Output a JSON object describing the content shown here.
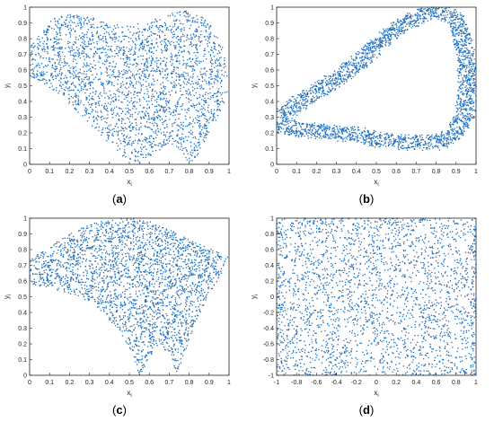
{
  "colors": {
    "points": "#1f6fbf",
    "frame": "#222222"
  },
  "captions": {
    "a": "a",
    "b": "b",
    "c": "c",
    "d": "d"
  },
  "chart_data": [
    {
      "panel": "a",
      "type": "scatter",
      "xlabel": "x",
      "xlabel_sub": "i",
      "ylabel": "y",
      "ylabel_sub": "i",
      "xlim": [
        0,
        1
      ],
      "ylim": [
        0,
        1
      ],
      "xticks": [
        0,
        0.1,
        0.2,
        0.3,
        0.4,
        0.5,
        0.6,
        0.7,
        0.8,
        0.9,
        1
      ],
      "yticks": [
        0,
        0.1,
        0.2,
        0.3,
        0.4,
        0.5,
        0.6,
        0.7,
        0.8,
        0.9,
        1
      ],
      "grid": false,
      "legend": "none",
      "point_count_estimate": 10000,
      "region_outline": [
        [
          0.0,
          0.74
        ],
        [
          0.05,
          0.84
        ],
        [
          0.12,
          0.93
        ],
        [
          0.2,
          0.96
        ],
        [
          0.3,
          0.94
        ],
        [
          0.4,
          0.9
        ],
        [
          0.5,
          0.88
        ],
        [
          0.6,
          0.91
        ],
        [
          0.7,
          0.96
        ],
        [
          0.78,
          0.98
        ],
        [
          0.85,
          0.95
        ],
        [
          0.92,
          0.88
        ],
        [
          0.97,
          0.74
        ],
        [
          1.0,
          0.5
        ],
        [
          0.97,
          0.36
        ],
        [
          0.9,
          0.2
        ],
        [
          0.84,
          0.05
        ],
        [
          0.8,
          0.0
        ],
        [
          0.75,
          0.1
        ],
        [
          0.7,
          0.14
        ],
        [
          0.62,
          0.06
        ],
        [
          0.55,
          0.0
        ],
        [
          0.48,
          0.04
        ],
        [
          0.42,
          0.1
        ],
        [
          0.35,
          0.2
        ],
        [
          0.25,
          0.32
        ],
        [
          0.15,
          0.44
        ],
        [
          0.06,
          0.52
        ],
        [
          0.0,
          0.56
        ]
      ]
    },
    {
      "panel": "b",
      "type": "scatter",
      "xlabel": "x",
      "xlabel_sub": "i",
      "ylabel": "y",
      "ylabel_sub": "i",
      "xlim": [
        0,
        1
      ],
      "ylim": [
        0,
        1
      ],
      "xticks": [
        0,
        0.1,
        0.2,
        0.3,
        0.4,
        0.5,
        0.6,
        0.7,
        0.8,
        0.9,
        1
      ],
      "yticks": [
        0,
        0.1,
        0.2,
        0.3,
        0.4,
        0.5,
        0.6,
        0.7,
        0.8,
        0.9,
        1
      ],
      "grid": false,
      "legend": "none",
      "point_count_estimate": 6000,
      "loop_outline": [
        [
          0.0,
          0.25
        ],
        [
          0.05,
          0.33
        ],
        [
          0.12,
          0.4
        ],
        [
          0.22,
          0.48
        ],
        [
          0.32,
          0.56
        ],
        [
          0.42,
          0.66
        ],
        [
          0.52,
          0.78
        ],
        [
          0.62,
          0.88
        ],
        [
          0.72,
          0.95
        ],
        [
          0.82,
          0.98
        ],
        [
          0.9,
          0.92
        ],
        [
          0.95,
          0.72
        ],
        [
          0.96,
          0.5
        ],
        [
          0.94,
          0.3
        ],
        [
          0.88,
          0.18
        ],
        [
          0.8,
          0.14
        ],
        [
          0.65,
          0.14
        ],
        [
          0.5,
          0.16
        ],
        [
          0.38,
          0.19
        ],
        [
          0.25,
          0.21
        ],
        [
          0.12,
          0.22
        ],
        [
          0.0,
          0.25
        ]
      ]
    },
    {
      "panel": "c",
      "type": "scatter",
      "xlabel": "x",
      "xlabel_sub": "i",
      "ylabel": "y",
      "ylabel_sub": "i",
      "xlim": [
        0,
        1
      ],
      "ylim": [
        0,
        1
      ],
      "xticks": [
        0,
        0.1,
        0.2,
        0.3,
        0.4,
        0.5,
        0.6,
        0.7,
        0.8,
        0.9,
        1
      ],
      "yticks": [
        0,
        0.1,
        0.2,
        0.3,
        0.4,
        0.5,
        0.6,
        0.7,
        0.8,
        0.9,
        1
      ],
      "grid": false,
      "legend": "none",
      "point_count_estimate": 10000,
      "region_outline": [
        [
          0.0,
          0.74
        ],
        [
          0.1,
          0.82
        ],
        [
          0.2,
          0.9
        ],
        [
          0.3,
          0.96
        ],
        [
          0.4,
          0.99
        ],
        [
          0.5,
          1.0
        ],
        [
          0.6,
          0.98
        ],
        [
          0.7,
          0.93
        ],
        [
          0.8,
          0.87
        ],
        [
          0.9,
          0.81
        ],
        [
          1.0,
          0.75
        ],
        [
          0.95,
          0.62
        ],
        [
          0.88,
          0.46
        ],
        [
          0.82,
          0.3
        ],
        [
          0.77,
          0.1
        ],
        [
          0.74,
          0.0
        ],
        [
          0.7,
          0.12
        ],
        [
          0.65,
          0.21
        ],
        [
          0.6,
          0.1
        ],
        [
          0.55,
          0.0
        ],
        [
          0.52,
          0.12
        ],
        [
          0.45,
          0.28
        ],
        [
          0.35,
          0.42
        ],
        [
          0.25,
          0.5
        ],
        [
          0.12,
          0.55
        ],
        [
          0.0,
          0.57
        ]
      ]
    },
    {
      "panel": "d",
      "type": "scatter",
      "xlabel": "x",
      "xlabel_sub": "i",
      "ylabel": "y",
      "ylabel_sub": "i",
      "xlim": [
        -1,
        1
      ],
      "ylim": [
        -1,
        1
      ],
      "xticks": [
        -1,
        -0.8,
        -0.6,
        -0.4,
        -0.2,
        0,
        0.2,
        0.4,
        0.6,
        0.8,
        1
      ],
      "yticks": [
        -1,
        -0.8,
        -0.6,
        -0.4,
        -0.2,
        0,
        0.2,
        0.4,
        0.6,
        0.8,
        1
      ],
      "grid": false,
      "legend": "none",
      "point_count_estimate": 10000,
      "distribution": "uniform square with denser edges"
    }
  ]
}
